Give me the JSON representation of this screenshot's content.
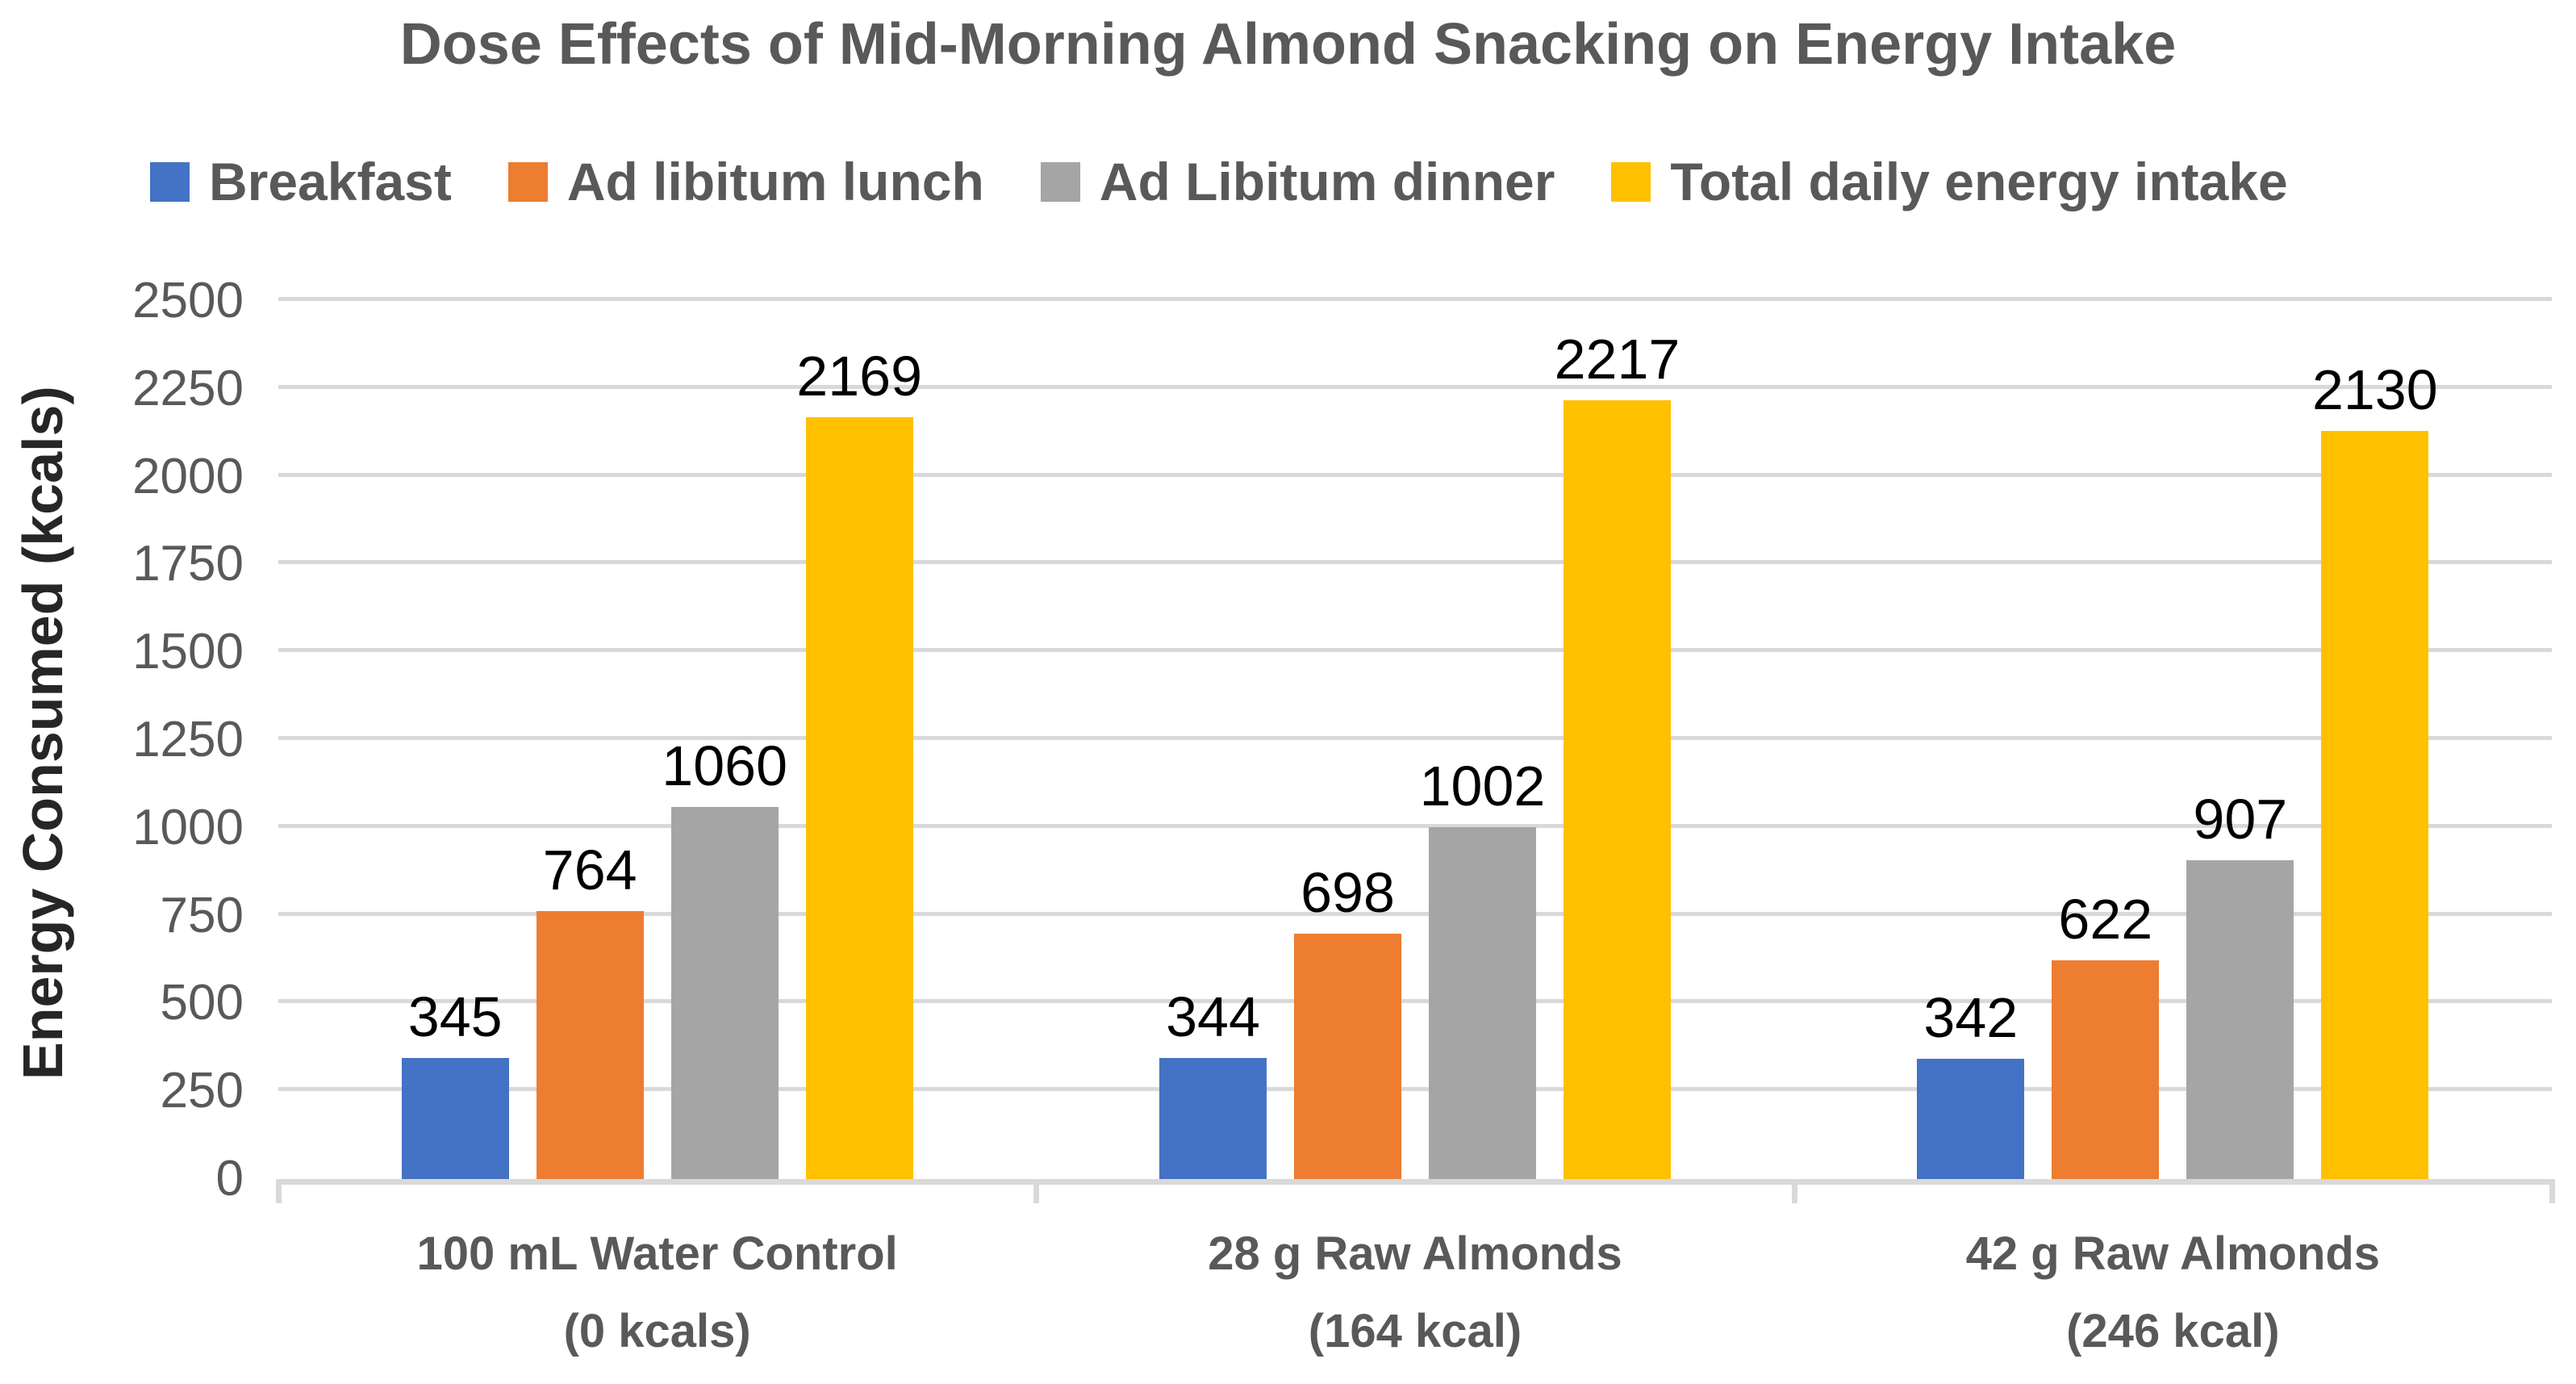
{
  "chart_data": {
    "type": "bar",
    "title": "Dose Effects of Mid-Morning Almond Snacking on Energy Intake",
    "ylabel": "Energy Consumed (kcals)",
    "xlabel": "",
    "ylim": [
      0,
      2500
    ],
    "ytick_step": 250,
    "grid": true,
    "legend_position": "top",
    "categories": [
      [
        "100 mL Water Control",
        "(0 kcals)"
      ],
      [
        "28 g Raw Almonds",
        "(164 kcal)"
      ],
      [
        "42 g Raw Almonds",
        "(246 kcal)"
      ]
    ],
    "series": [
      {
        "name": "Breakfast",
        "color": "#4472C4",
        "values": [
          345,
          344,
          342
        ]
      },
      {
        "name": "Ad libitum lunch",
        "color": "#ED7D31",
        "values": [
          764,
          698,
          622
        ]
      },
      {
        "name": "Ad Libitum dinner",
        "color": "#A5A5A5",
        "values": [
          1060,
          1002,
          907
        ]
      },
      {
        "name": "Total daily energy intake",
        "color": "#FFC000",
        "values": [
          2169,
          2217,
          2130
        ]
      }
    ]
  },
  "colors": {
    "background": "#FFFFFF",
    "gridline": "#D9D9D9",
    "axis_line": "#D9D9D9",
    "title_text": "#595959",
    "tick_label_text": "#595959",
    "category_label_text": "#595959",
    "legend_text": "#595959",
    "axis_title_text": "#262626",
    "data_label_text": "#000000"
  }
}
